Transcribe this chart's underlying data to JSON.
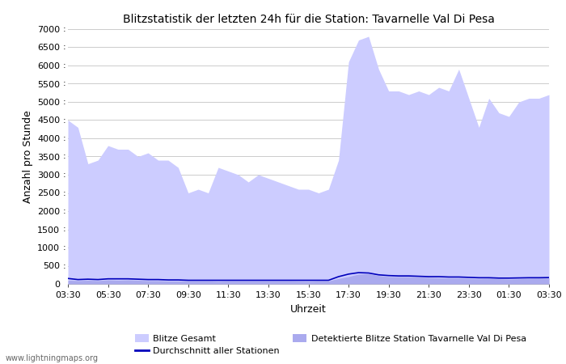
{
  "title": "Blitzstatistik der letzten 24h für die Station: Tavarnelle Val Di Pesa",
  "ylabel": "Anzahl pro Stunde",
  "xlabel": "Uhrzeit",
  "watermark": "www.lightningmaps.org",
  "legend": {
    "blitze_gesamt": "Blitze Gesamt",
    "durchschnitt": "Durchschnitt aller Stationen",
    "detektierte": "Detektierte Blitze Station Tavarnelle Val Di Pesa"
  },
  "colors": {
    "fill_gesamt": "#ccccff",
    "fill_detektiert": "#aaaaee",
    "line_durchschnitt": "#0000bb",
    "background": "#ffffff",
    "grid": "#cccccc",
    "text": "#000000"
  },
  "ylim": [
    0,
    7000
  ],
  "yticks": [
    0,
    500,
    1000,
    1500,
    2000,
    2500,
    3000,
    3500,
    4000,
    4500,
    5000,
    5500,
    6000,
    6500,
    7000
  ],
  "x_labels": [
    "03:30",
    "05:30",
    "07:30",
    "09:30",
    "11:30",
    "13:30",
    "15:30",
    "17:30",
    "19:30",
    "21:30",
    "23:30",
    "01:30",
    "03:30"
  ],
  "time_points": 49,
  "blitze_gesamt": [
    4500,
    4300,
    3300,
    3400,
    3800,
    3700,
    3700,
    3500,
    3600,
    3400,
    3400,
    3200,
    2500,
    2600,
    2500,
    3200,
    3100,
    3000,
    2800,
    3000,
    2900,
    2800,
    2700,
    2600,
    2600,
    2500,
    2600,
    3400,
    6100,
    6700,
    6800,
    5900,
    5300,
    5300,
    5200,
    5300,
    5200,
    5400,
    5300,
    5900,
    5100,
    4300,
    5100,
    4700,
    4600,
    5000,
    5100,
    5100,
    5200
  ],
  "detektierte": [
    100,
    90,
    100,
    90,
    110,
    100,
    110,
    100,
    90,
    90,
    80,
    80,
    80,
    80,
    80,
    70,
    80,
    80,
    80,
    80,
    80,
    80,
    80,
    75,
    70,
    80,
    80,
    150,
    200,
    270,
    280,
    230,
    200,
    200,
    200,
    190,
    180,
    170,
    160,
    160,
    150,
    140,
    150,
    140,
    130,
    140,
    150,
    155,
    160
  ],
  "durchschnitt": [
    150,
    120,
    130,
    120,
    140,
    140,
    140,
    130,
    120,
    120,
    110,
    110,
    100,
    100,
    100,
    100,
    100,
    100,
    100,
    100,
    100,
    100,
    100,
    100,
    100,
    100,
    100,
    200,
    270,
    310,
    300,
    250,
    230,
    220,
    220,
    210,
    200,
    200,
    190,
    190,
    180,
    170,
    170,
    160,
    160,
    165,
    170,
    170,
    175
  ]
}
